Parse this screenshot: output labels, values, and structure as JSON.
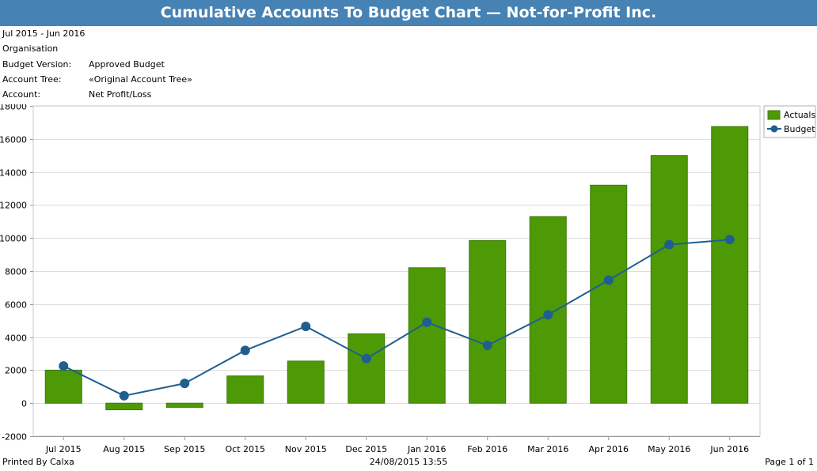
{
  "header": {
    "title": "Cumulative Accounts To Budget Chart — Not-for-Profit Inc."
  },
  "info": {
    "period": "Jul 2015 - Jun 2016",
    "organisation_label": "Organisation",
    "rows": [
      {
        "label": "Budget Version:",
        "value": "Approved Budget"
      },
      {
        "label": "Account Tree:",
        "value": "«Original Account Tree»"
      },
      {
        "label": "Account:",
        "value": "Net Profit/Loss"
      }
    ]
  },
  "chart_data": {
    "type": "bar",
    "categories": [
      "Jul 2015",
      "Aug 2015",
      "Sep 2015",
      "Oct 2015",
      "Nov 2015",
      "Dec 2015",
      "Jan 2016",
      "Feb 2016",
      "Mar 2016",
      "Apr 2016",
      "May 2016",
      "Jun 2016"
    ],
    "series": [
      {
        "name": "Actuals",
        "type": "bar",
        "color": "#4e9a06",
        "values": [
          2000,
          -400,
          -250,
          1650,
          2550,
          4200,
          8200,
          9850,
          11300,
          13200,
          15000,
          16750
        ]
      },
      {
        "name": "Budget",
        "type": "line",
        "color": "#1f5f8f",
        "values": [
          2250,
          450,
          1200,
          3200,
          4650,
          2700,
          4900,
          3500,
          5350,
          7450,
          9600,
          9900
        ]
      }
    ],
    "ylim": [
      -2000,
      18000
    ],
    "yticks": [
      -2000,
      0,
      2000,
      4000,
      6000,
      8000,
      10000,
      12000,
      14000,
      16000,
      18000
    ],
    "grid": true,
    "legend": "top-right",
    "title": "",
    "xlabel": "",
    "ylabel": ""
  },
  "footer": {
    "printed_by": "Printed By Calxa",
    "timestamp": "24/08/2015 13:55",
    "page": "Page 1 of 1"
  }
}
